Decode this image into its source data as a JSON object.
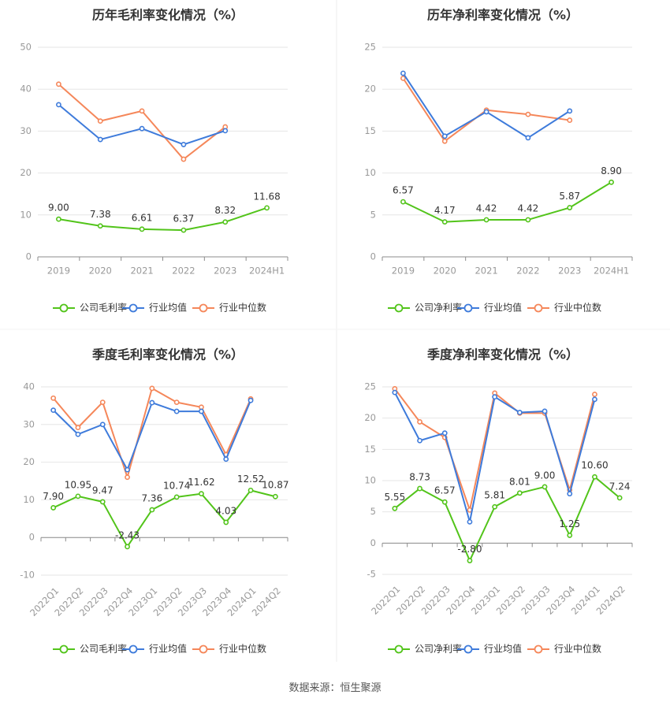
{
  "source_text": "数据来源：恒生聚源",
  "colors": {
    "company": "#52c41a",
    "industry_avg": "#3e7bdb",
    "industry_median": "#f5875a"
  },
  "chart_data": [
    {
      "type": "line",
      "title": "历年毛利率变化情况（%）",
      "categories": [
        "2019",
        "2020",
        "2021",
        "2022",
        "2023",
        "2024H1"
      ],
      "ylim": [
        0,
        50
      ],
      "yticks": [
        0,
        10,
        20,
        30,
        40,
        50
      ],
      "xlabel_rotate": false,
      "grid": true,
      "legend": "bottom",
      "series": [
        {
          "name": "公司毛利率",
          "color": "#52c41a",
          "labels": true,
          "values": [
            9.0,
            7.38,
            6.61,
            6.37,
            8.32,
            11.68
          ],
          "value_labels": [
            "9.00",
            "7.38",
            "6.61",
            "6.37",
            "8.32",
            "11.68"
          ]
        },
        {
          "name": "行业均值",
          "color": "#3e7bdb",
          "labels": false,
          "values": [
            36.3,
            28.0,
            30.6,
            26.8,
            30.1,
            null
          ]
        },
        {
          "name": "行业中位数",
          "color": "#f5875a",
          "labels": false,
          "values": [
            41.2,
            32.4,
            34.8,
            23.3,
            31.0,
            null
          ]
        }
      ]
    },
    {
      "type": "line",
      "title": "历年净利率变化情况（%）",
      "categories": [
        "2019",
        "2020",
        "2021",
        "2022",
        "2023",
        "2024H1"
      ],
      "ylim": [
        0,
        25
      ],
      "yticks": [
        0,
        5,
        10,
        15,
        20,
        25
      ],
      "xlabel_rotate": false,
      "grid": true,
      "legend": "bottom",
      "series": [
        {
          "name": "公司净利率",
          "color": "#52c41a",
          "labels": true,
          "values": [
            6.57,
            4.17,
            4.42,
            4.42,
            5.87,
            8.9
          ],
          "value_labels": [
            "6.57",
            "4.17",
            "4.42",
            "4.42",
            "5.87",
            "8.90"
          ]
        },
        {
          "name": "行业均值",
          "color": "#3e7bdb",
          "labels": false,
          "values": [
            21.9,
            14.4,
            17.3,
            14.2,
            17.4,
            null
          ]
        },
        {
          "name": "行业中位数",
          "color": "#f5875a",
          "labels": false,
          "values": [
            21.3,
            13.8,
            17.5,
            17.0,
            16.3,
            null
          ]
        }
      ]
    },
    {
      "type": "line",
      "title": "季度毛利率变化情况（%）",
      "categories": [
        "2022Q1",
        "2022Q2",
        "2022Q3",
        "2022Q4",
        "2023Q1",
        "2023Q2",
        "2023Q3",
        "2023Q4",
        "2024Q1",
        "2024Q2"
      ],
      "ylim": [
        -10,
        40
      ],
      "yticks": [
        -10,
        0,
        10,
        20,
        30,
        40
      ],
      "xlabel_rotate": true,
      "grid": true,
      "legend": "bottom",
      "series": [
        {
          "name": "公司毛利率",
          "color": "#52c41a",
          "labels": true,
          "values": [
            7.9,
            10.95,
            9.47,
            -2.43,
            7.36,
            10.74,
            11.62,
            4.03,
            12.52,
            10.87
          ],
          "value_labels": [
            "7.90",
            "10.95",
            "9.47",
            "-2.43",
            "7.36",
            "10.74",
            "11.62",
            "4.03",
            "12.52",
            "10.87"
          ]
        },
        {
          "name": "行业均值",
          "color": "#3e7bdb",
          "labels": false,
          "values": [
            33.8,
            27.4,
            30.0,
            18.0,
            35.8,
            33.5,
            33.5,
            20.8,
            36.4,
            null
          ]
        },
        {
          "name": "行业中位数",
          "color": "#f5875a",
          "labels": false,
          "values": [
            37.0,
            29.2,
            35.9,
            16.0,
            39.6,
            35.9,
            34.6,
            22.0,
            36.8,
            null
          ]
        }
      ]
    },
    {
      "type": "line",
      "title": "季度净利率变化情况（%）",
      "categories": [
        "2022Q1",
        "2022Q2",
        "2022Q3",
        "2022Q4",
        "2023Q1",
        "2023Q2",
        "2023Q3",
        "2023Q4",
        "2024Q1",
        "2024Q2"
      ],
      "ylim": [
        -5,
        25
      ],
      "yticks": [
        -5,
        0,
        5,
        10,
        15,
        20,
        25
      ],
      "xlabel_rotate": true,
      "grid": true,
      "legend": "bottom",
      "series": [
        {
          "name": "公司净利率",
          "color": "#52c41a",
          "labels": true,
          "values": [
            5.55,
            8.73,
            6.57,
            -2.8,
            5.81,
            8.01,
            9.0,
            1.25,
            10.6,
            7.24
          ],
          "value_labels": [
            "5.55",
            "8.73",
            "6.57",
            "-2.80",
            "5.81",
            "8.01",
            "9.00",
            "1.25",
            "10.60",
            "7.24"
          ]
        },
        {
          "name": "行业均值",
          "color": "#3e7bdb",
          "labels": false,
          "values": [
            24.1,
            16.4,
            17.6,
            3.4,
            23.4,
            20.9,
            21.1,
            7.9,
            23.0,
            null
          ]
        },
        {
          "name": "行业中位数",
          "color": "#f5875a",
          "labels": false,
          "values": [
            24.7,
            19.4,
            16.9,
            5.3,
            24.0,
            20.8,
            20.8,
            8.5,
            23.8,
            null
          ]
        }
      ]
    }
  ]
}
